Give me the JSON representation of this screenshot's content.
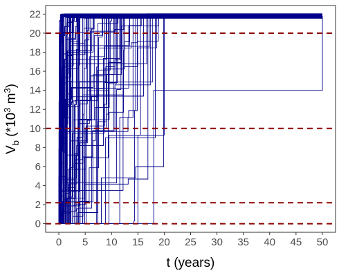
{
  "chart_data": {
    "type": "line",
    "title": "",
    "xlabel": "t (years)",
    "ylabel": {
      "main": "V",
      "subscript": "b",
      "paren_open": " (*10",
      "sup1": "3",
      "unit": " m",
      "sup2": "3",
      "paren_close": ")"
    },
    "xlim": [
      -2.5,
      52.5
    ],
    "ylim": [
      -0.9,
      22.9
    ],
    "x_ticks": [
      "0",
      "5",
      "10",
      "15",
      "20",
      "25",
      "30",
      "35",
      "40",
      "45",
      "50"
    ],
    "y_ticks": [
      "0",
      "2",
      "4",
      "6",
      "8",
      "10",
      "12",
      "14",
      "16",
      "18",
      "20",
      "22"
    ],
    "grid": false,
    "legend": "none",
    "series_color": "#00008b",
    "reference_line_color": "#8b0000",
    "reference_lines_y": [
      0,
      2.2,
      10,
      20
    ],
    "upper_plateau_value": 21.8,
    "upper_plateau_spread": [
      21.55,
      22.05
    ],
    "step_series_count": 90,
    "step_time_range": [
      0,
      20
    ],
    "approx_series": [
      {
        "x": [
          0,
          0.3,
          1.5,
          4,
          50
        ],
        "y": [
          0,
          9,
          18,
          21.8,
          21.8
        ]
      },
      {
        "x": [
          0,
          3,
          5,
          9,
          50
        ],
        "y": [
          0,
          2,
          10,
          21.9,
          21.9
        ]
      },
      {
        "x": [
          0,
          6,
          9.5,
          15.5,
          50
        ],
        "y": [
          0,
          0,
          9.3,
          21.6,
          21.6
        ]
      },
      {
        "x": [
          0,
          11,
          15,
          20,
          50
        ],
        "y": [
          0,
          0,
          9.3,
          21.7,
          21.7
        ]
      },
      {
        "x": [
          0,
          15.5,
          18,
          50
        ],
        "y": [
          0,
          0,
          14,
          21.8
        ]
      }
    ]
  }
}
